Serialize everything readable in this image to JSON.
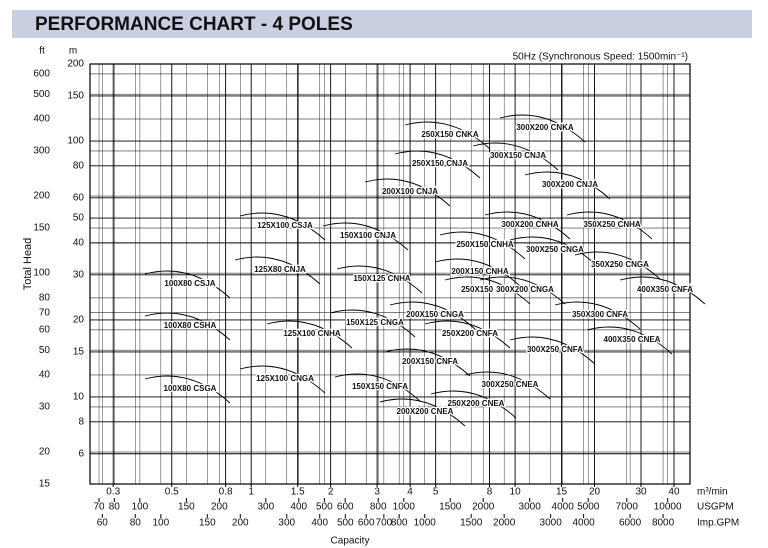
{
  "chart_data": {
    "type": "pump-performance",
    "title": "PERFORMANCE CHART -  4 POLES",
    "note": "50Hz (Synchronous Speed: 1500min⁻¹)",
    "y_label": "Total Head",
    "x_label": "Capacity",
    "y_unit": "m",
    "y2_unit": "ft",
    "x_unit": "m³/min",
    "usgpm_unit": "USGPM",
    "impgpm_unit": "Imp.GPM",
    "log_scale": true,
    "grid": true,
    "ylim": [
      4.57,
      200
    ],
    "yticks": [
      6,
      8,
      10,
      15,
      20,
      30,
      40,
      50,
      60,
      80,
      100,
      150,
      200
    ],
    "y2lim": [
      15,
      656
    ],
    "y2ticks": [
      15,
      20,
      30,
      40,
      50,
      60,
      70,
      80,
      100,
      150,
      200,
      300,
      400,
      500,
      600
    ],
    "xlim": [
      0.245,
      46
    ],
    "xticks": [
      0.3,
      0.5,
      0.8,
      1,
      1.5,
      2,
      3,
      4,
      5,
      8,
      10,
      15,
      20,
      30,
      40
    ],
    "usgpm_lim": [
      64.7,
      12152
    ],
    "usgpm_ticks": [
      70,
      80,
      100,
      150,
      200,
      300,
      400,
      500,
      600,
      800,
      1000,
      1500,
      2000,
      3000,
      4000,
      5000,
      7000,
      10000
    ],
    "impgpm_lim": [
      53.9,
      10119
    ],
    "impgpm_ticks": [
      60,
      80,
      100,
      150,
      200,
      300,
      400,
      500,
      600,
      700,
      800,
      1000,
      1500,
      2000,
      3000,
      4000,
      6000,
      8000
    ],
    "models": [
      "100X80 CSJA",
      "100X80 CSHA",
      "100X80 CSGA",
      "125X100 CSJA",
      "125X80 CNJA",
      "125X100 CNHA",
      "125X100 CNGA",
      "150X100 CNJA",
      "150X125 CNHA",
      "150X125 CNGA",
      "150X150 CNFA",
      "200X100 CNJA",
      "250X150 CNJA",
      "250X150 CNKA",
      "300X200 CNKA",
      "300X150 CNJA",
      "300X200 CNJA",
      "200X150 CNHA",
      "200X150 CNGA",
      "200X150 CNFA",
      "200X200 CNEA",
      "250X150 CNHA",
      "250X150 CNGA",
      "250X200 CNFA",
      "250X200 CNEA",
      "300X200 CNHA",
      "300X250 CNGA",
      "300X200 CNGA",
      "300X250 CNFA",
      "300X250 CNEA",
      "350X250 CNHA",
      "350X250 CNGA",
      "350X300 CNFA",
      "400X350 CNFA",
      "400X350 CNEA"
    ]
  }
}
